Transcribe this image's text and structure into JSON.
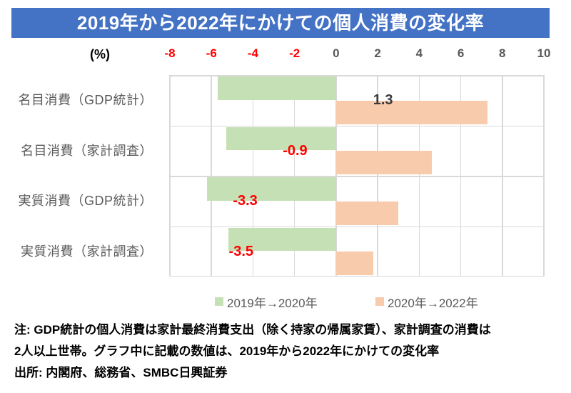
{
  "title": "2019年から2022年にかけての個人消費の変化率",
  "title_bg_color": "#4472C4",
  "axis": {
    "unit_label": "(%)",
    "tick_color": "#595959",
    "tick_negative_color": "#FF0000"
  },
  "grid_color": "#D9D9D9",
  "chart_data": {
    "type": "bar",
    "orientation": "horizontal",
    "title": "2019年から2022年にかけての個人消費の変化率",
    "xlabel": "(%)",
    "xlim": [
      -8,
      10
    ],
    "xticks": [
      -8,
      -6,
      -4,
      -2,
      0,
      2,
      4,
      6,
      8,
      10
    ],
    "grid": true,
    "legend_position": "bottom",
    "categories": [
      "名目消費（GDP統計）",
      "名目消費（家計調査）",
      "実質消費（GDP統計）",
      "実質消費（家計調査）"
    ],
    "series": [
      {
        "name": "2019年→2020年",
        "color": "#C5E0B4",
        "values": [
          -5.7,
          -5.3,
          -6.2,
          -5.2
        ]
      },
      {
        "name": "2020年→2022年",
        "color": "#F8CBAD",
        "values": [
          7.3,
          4.6,
          3.0,
          1.8
        ]
      }
    ],
    "data_labels": {
      "description": "2019年から2022年にかけての変化率",
      "text": [
        "1.3",
        "-0.9",
        "-3.3",
        "-3.5"
      ],
      "values": [
        1.3,
        -0.9,
        -3.3,
        -3.5
      ],
      "positive_color": "#3B3B3B",
      "negative_color": "#FF0000"
    }
  },
  "notes": [
    "注: GDP統計の個人消費は家計最終消費支出（除く持家の帰属家賃）、家計調査の消費は",
    "2人以上世帯。グラフ中に記載の数値は、2019年から2022年にかけての変化率",
    "出所: 内閣府、総務省、SMBC日興証券"
  ]
}
